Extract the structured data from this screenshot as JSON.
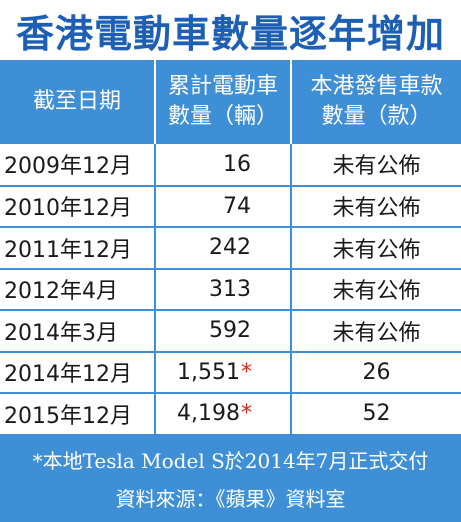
{
  "title": "香港電動車數量逐年增加",
  "headers": {
    "col1": "截至日期",
    "col2_line1": "累計電動車",
    "col2_line2": "數量（輛）",
    "col3_line1": "本港發售車款",
    "col3_line2": "數量（款）"
  },
  "rows": [
    {
      "date": "2009年12月",
      "count": "16",
      "star": "",
      "models": "未有公佈"
    },
    {
      "date": "2010年12月",
      "count": "74",
      "star": "",
      "models": "未有公佈"
    },
    {
      "date": "2011年12月",
      "count": "242",
      "star": "",
      "models": "未有公佈"
    },
    {
      "date": "2012年4月",
      "count": "313",
      "star": "",
      "models": "未有公佈"
    },
    {
      "date": "2014年3月",
      "count": "592",
      "star": "",
      "models": "未有公佈"
    },
    {
      "date": "2014年12月",
      "count": "1,551",
      "star": "*",
      "models": "26"
    },
    {
      "date": "2015年12月",
      "count": "4,198",
      "star": "*",
      "models": "52"
    }
  ],
  "footnote": "*本地Tesla Model S於2014年7月正式交付",
  "source": "資料來源：《蘋果》資料室",
  "colors": {
    "title": "#1d5fb5",
    "header_bg": "#3f8fd6",
    "star": "#d9261c"
  }
}
